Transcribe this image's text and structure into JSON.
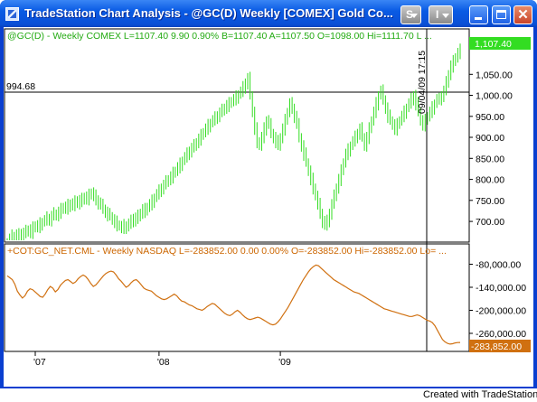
{
  "window": {
    "title": "TradeStation Chart Analysis - @GC(D) Weekly [COMEX] Gold Co...",
    "btn_s_label": "S",
    "btn_i_label": "I",
    "close_label": "✕"
  },
  "colors": {
    "price_series": "#33dd22",
    "indicator_series": "#d07010",
    "title_bar": "#0a4fd6"
  },
  "top_panel": {
    "legend": "@GC(D) - Weekly  COMEX  L=1107.40  9.90    0.90%  B=1107.40  A=1107.50  O=1098.00  Hi=1111.70  L ...",
    "hline_label": "994.68",
    "cursor_timestamp": "09/04/09 17:15",
    "last_price_badge": "1,107.40"
  },
  "bottom_panel": {
    "legend": "+COT:GC_NET.CML - Weekly  NASDAQ  L=-283852.00  0.00  0.00%  O=-283852.00  Hi=-283852.00  Lo= ...",
    "last_value_badge": "-283,852.00"
  },
  "footer": {
    "text": "Created with TradeStation"
  },
  "chart_data": [
    {
      "type": "bar",
      "series_name": "@GC(D) Weekly COMEX",
      "y_ticks": [
        "1,050.00",
        "1,000.00",
        "950.00",
        "900.00",
        "850.00",
        "800.00",
        "750.00",
        "700.00"
      ],
      "y_tick_values": [
        1050,
        1000,
        950,
        900,
        850,
        800,
        750,
        700
      ],
      "x_ticks": [
        "'07",
        "'08",
        "'09"
      ],
      "horizontal_line": 994.68,
      "last": 1107.4,
      "ylim": [
        655,
        1128
      ],
      "weekly_close": [
        650,
        658,
        665,
        662,
        668,
        664,
        672,
        670,
        676,
        680,
        674,
        684,
        690,
        686,
        694,
        698,
        702,
        708,
        704,
        712,
        718,
        714,
        722,
        728,
        734,
        730,
        738,
        742,
        736,
        746,
        750,
        744,
        752,
        758,
        754,
        762,
        768,
        760,
        752,
        744,
        738,
        730,
        722,
        716,
        712,
        704,
        698,
        692,
        688,
        684,
        690,
        686,
        694,
        700,
        708,
        704,
        712,
        720,
        728,
        724,
        734,
        740,
        748,
        756,
        764,
        772,
        780,
        786,
        794,
        800,
        806,
        814,
        820,
        828,
        836,
        844,
        852,
        860,
        868,
        874,
        880,
        888,
        896,
        904,
        912,
        920,
        928,
        934,
        940,
        946,
        952,
        958,
        964,
        970,
        976,
        980,
        986,
        990,
        996,
        1002,
        1008,
        1018,
        1030,
        1040,
        1000,
        960,
        920,
        890,
        880,
        900,
        920,
        940,
        930,
        910,
        900,
        890,
        880,
        900,
        920,
        940,
        960,
        980,
        970,
        950,
        930,
        900,
        880,
        860,
        840,
        820,
        800,
        780,
        760,
        740,
        720,
        700,
        690,
        700,
        720,
        740,
        760,
        780,
        800,
        820,
        840,
        860,
        870,
        880,
        890,
        900,
        910,
        920,
        900,
        880,
        900,
        920,
        940,
        960,
        980,
        1000,
        1010,
        990,
        970,
        950,
        940,
        930,
        920,
        930,
        940,
        950,
        960,
        970,
        980,
        990,
        1000,
        980,
        960,
        940,
        930,
        940,
        950,
        960,
        970,
        980,
        990,
        990,
        1000,
        1010,
        1030,
        1050,
        1070,
        1080,
        1090,
        1100,
        1107
      ]
    },
    {
      "type": "line",
      "series_name": "COT:GC_NET.CML Weekly NASDAQ",
      "y_ticks": [
        "-80,000.00",
        "-140,000.00",
        "-200,000.00",
        "-260,000.00"
      ],
      "y_tick_values": [
        -80000,
        -140000,
        -200000,
        -260000
      ],
      "last": -283852.0,
      "ylim": [
        -300000,
        -60000
      ],
      "weekly_values": [
        -110000,
        -115000,
        -120000,
        -132000,
        -150000,
        -160000,
        -168000,
        -162000,
        -150000,
        -144000,
        -146000,
        -152000,
        -158000,
        -164000,
        -166000,
        -158000,
        -146000,
        -138000,
        -142000,
        -152000,
        -146000,
        -135000,
        -128000,
        -122000,
        -120000,
        -125000,
        -130000,
        -126000,
        -118000,
        -112000,
        -108000,
        -112000,
        -120000,
        -130000,
        -138000,
        -134000,
        -126000,
        -118000,
        -110000,
        -104000,
        -100000,
        -98000,
        -100000,
        -108000,
        -118000,
        -124000,
        -132000,
        -140000,
        -136000,
        -128000,
        -122000,
        -120000,
        -126000,
        -134000,
        -142000,
        -146000,
        -148000,
        -150000,
        -156000,
        -162000,
        -166000,
        -170000,
        -172000,
        -170000,
        -166000,
        -162000,
        -158000,
        -162000,
        -170000,
        -176000,
        -178000,
        -182000,
        -186000,
        -188000,
        -192000,
        -196000,
        -198000,
        -200000,
        -196000,
        -190000,
        -186000,
        -182000,
        -184000,
        -190000,
        -196000,
        -202000,
        -208000,
        -212000,
        -214000,
        -210000,
        -204000,
        -200000,
        -205000,
        -212000,
        -218000,
        -222000,
        -224000,
        -222000,
        -220000,
        -218000,
        -220000,
        -224000,
        -228000,
        -232000,
        -236000,
        -238000,
        -236000,
        -230000,
        -222000,
        -212000,
        -202000,
        -192000,
        -180000,
        -168000,
        -156000,
        -144000,
        -132000,
        -120000,
        -110000,
        -100000,
        -92000,
        -86000,
        -82000,
        -84000,
        -90000,
        -96000,
        -102000,
        -108000,
        -114000,
        -120000,
        -124000,
        -128000,
        -132000,
        -136000,
        -140000,
        -144000,
        -148000,
        -152000,
        -154000,
        -156000,
        -160000,
        -164000,
        -168000,
        -172000,
        -176000,
        -180000,
        -184000,
        -188000,
        -192000,
        -196000,
        -198000,
        -200000,
        -202000,
        -204000,
        -206000,
        -208000,
        -210000,
        -212000,
        -214000,
        -216000,
        -216000,
        -214000,
        -212000,
        -214000,
        -218000,
        -222000,
        -226000,
        -228000,
        -232000,
        -240000,
        -252000,
        -264000,
        -276000,
        -282000,
        -286000,
        -288000,
        -287000,
        -285000,
        -284000,
        -283852
      ]
    }
  ]
}
